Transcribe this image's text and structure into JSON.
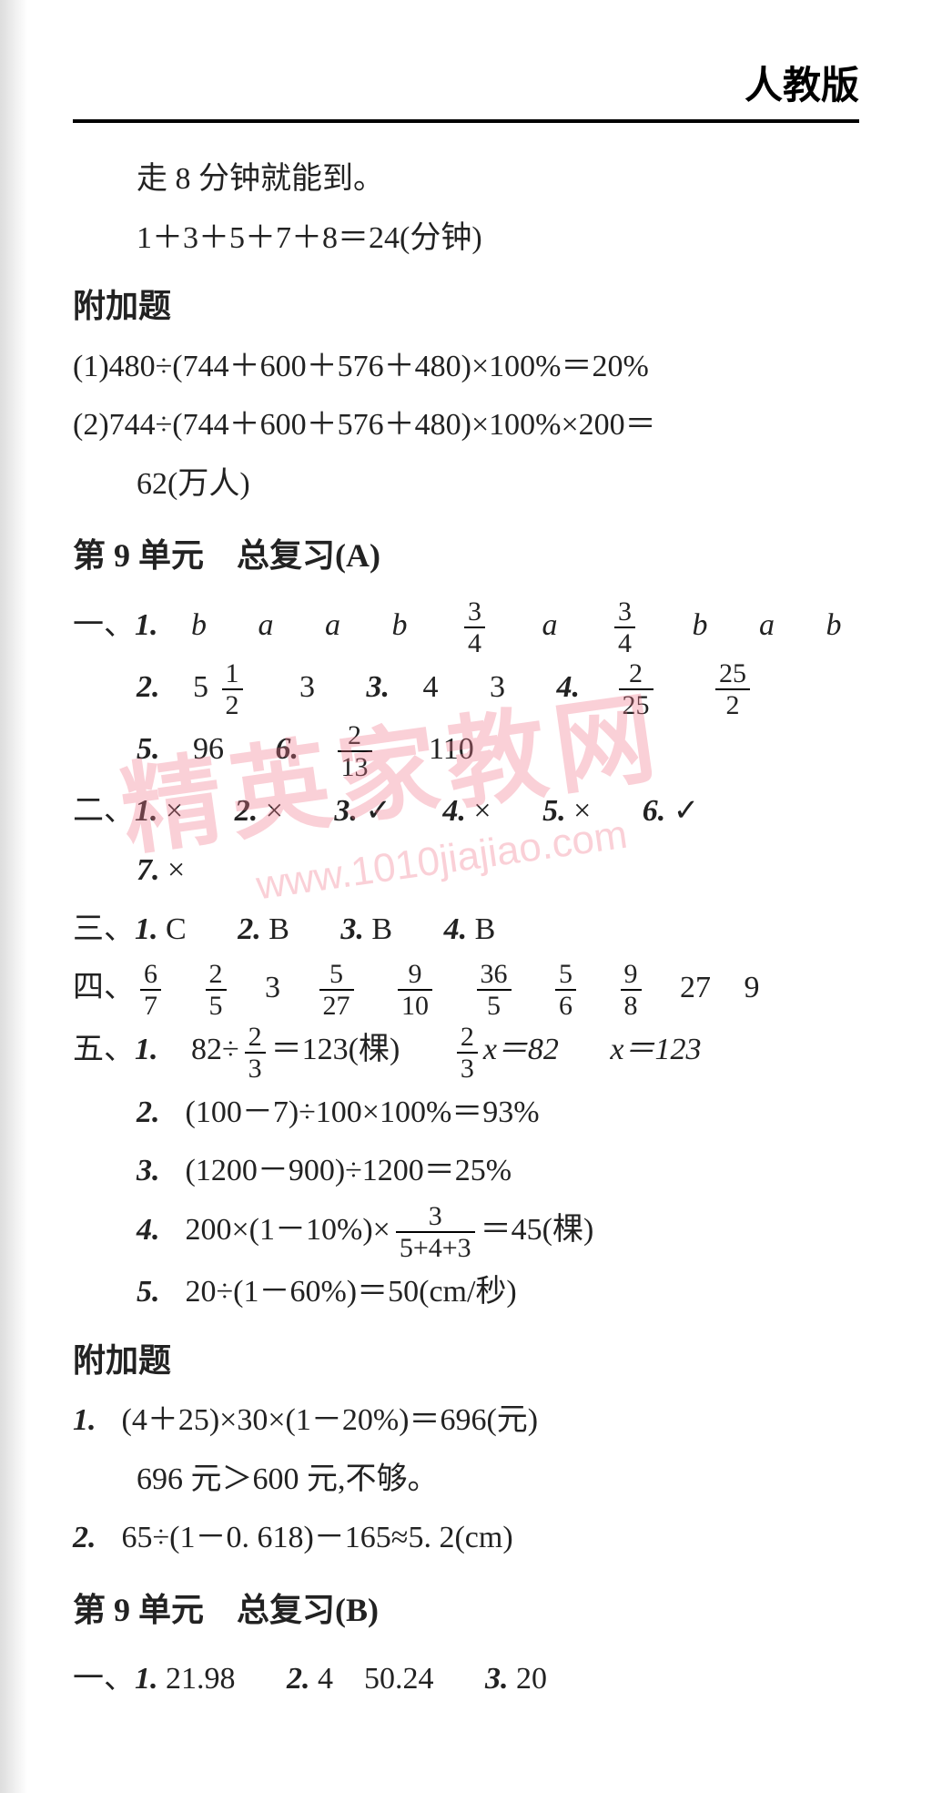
{
  "header": "人教版",
  "watermark_main": "精英家教网",
  "watermark_url": "www.1010jiajiao.com",
  "continuation": {
    "l1": "走 8 分钟就能到。",
    "l2": "1＋3＋5＋7＋8＝24(分钟)"
  },
  "bonus1": {
    "title": "附加题",
    "l1": "(1)480÷(744＋600＋576＋480)×100%＝20%",
    "l2": "(2)744÷(744＋600＋576＋480)×100%×200＝",
    "l3": "62(万人)"
  },
  "unit9a": {
    "title": "第 9 单元　总复习(A)",
    "s1": {
      "label": "一、",
      "q1_label": "1.",
      "q1_vals": [
        "b",
        "a",
        "a",
        "b",
        "3/4",
        "a",
        "3/4",
        "b",
        "a",
        "b"
      ],
      "q2_label": "2.",
      "q2_vals": [
        "5",
        "1/2",
        "3"
      ],
      "q3_label": "3.",
      "q3_vals": [
        "4",
        "3"
      ],
      "q4_label": "4.",
      "q4_vals": [
        "2/25",
        "25/2"
      ],
      "q5_label": "5.",
      "q5_vals": [
        "96"
      ],
      "q6_label": "6.",
      "q6_vals": [
        "2/13",
        "110"
      ]
    },
    "s2": {
      "label": "二、",
      "items": [
        {
          "n": "1.",
          "v": "×"
        },
        {
          "n": "2.",
          "v": "×"
        },
        {
          "n": "3.",
          "v": "✓"
        },
        {
          "n": "4.",
          "v": "×"
        },
        {
          "n": "5.",
          "v": "×"
        },
        {
          "n": "6.",
          "v": "✓"
        },
        {
          "n": "7.",
          "v": "×"
        }
      ]
    },
    "s3": {
      "label": "三、",
      "items": [
        {
          "n": "1.",
          "v": "C"
        },
        {
          "n": "2.",
          "v": "B"
        },
        {
          "n": "3.",
          "v": "B"
        },
        {
          "n": "4.",
          "v": "B"
        }
      ]
    },
    "s4": {
      "label": "四、",
      "vals": [
        "6/7",
        "2/5",
        "3",
        "5/27",
        "9/10",
        "36/5",
        "5/6",
        "9/8",
        "27",
        "9"
      ]
    },
    "s5": {
      "label": "五、",
      "q1": {
        "n": "1.",
        "a": "82÷",
        "f": "2/3",
        "b": "＝123(棵)",
        "c": "",
        "f2": "2/3",
        "d": "x＝82",
        "e": "x＝123"
      },
      "q2": {
        "n": "2.",
        "t": "(100－7)÷100×100%＝93%"
      },
      "q3": {
        "n": "3.",
        "t": "(1200－900)÷1200＝25%"
      },
      "q4": {
        "n": "4.",
        "a": "200×(1－10%)×",
        "f": "3/(5+4+3)",
        "b": "＝45(棵)"
      },
      "q5": {
        "n": "5.",
        "t": "20÷(1－60%)＝50(cm/秒)"
      }
    }
  },
  "bonus2": {
    "title": "附加题",
    "q1": {
      "n": "1.",
      "l1": "(4＋25)×30×(1－20%)＝696(元)",
      "l2": "696 元＞600 元,不够。"
    },
    "q2": {
      "n": "2.",
      "t": "65÷(1－0. 618)－165≈5. 2(cm)"
    }
  },
  "unit9b": {
    "title": "第 9 单元　总复习(B)",
    "s1": {
      "label": "一、",
      "items": [
        {
          "n": "1.",
          "v": "21.98"
        },
        {
          "n": "2.",
          "v": "4　50.24"
        },
        {
          "n": "3.",
          "v": "20"
        }
      ]
    }
  }
}
